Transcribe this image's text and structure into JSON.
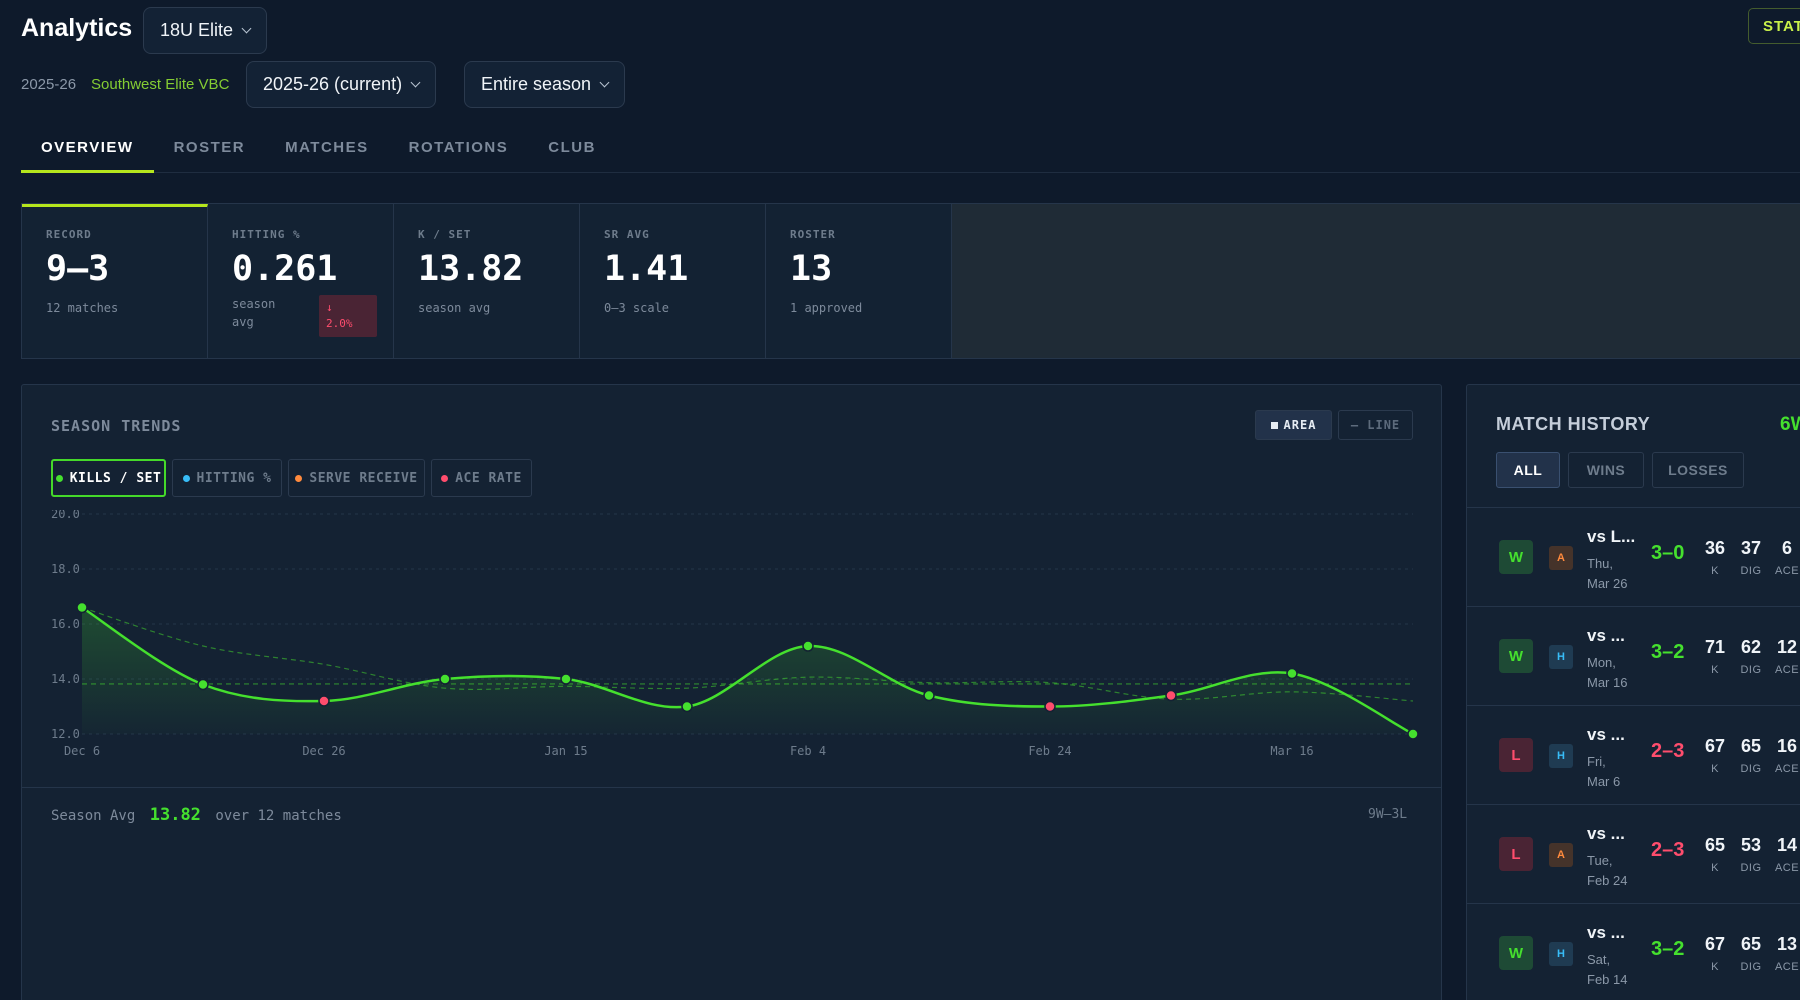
{
  "header": {
    "title": "Analytics",
    "team": "18U Elite",
    "season_label": "2025-26",
    "club_name": "Southwest Elite VBC",
    "season_select": "2025-26 (current)",
    "range_select": "Entire season",
    "stat_button": "STAT"
  },
  "tabs": [
    "OVERVIEW",
    "ROSTER",
    "MATCHES",
    "ROTATIONS",
    "CLUB"
  ],
  "kpis": {
    "record": {
      "label": "RECORD",
      "value": "9–3",
      "sub": "12 matches"
    },
    "hitting": {
      "label": "HITTING %",
      "value": "0.261",
      "sub": "season avg",
      "delta_arrow": "↓",
      "delta": "2.0%"
    },
    "kset": {
      "label": "K / SET",
      "value": "13.82",
      "sub": "season avg"
    },
    "sr": {
      "label": "SR AVG",
      "value": "1.41",
      "sub": "0–3 scale"
    },
    "roster": {
      "label": "ROSTER",
      "value": "13",
      "sub": "1 approved"
    }
  },
  "trends": {
    "title": "SEASON TRENDS",
    "view_area": "AREA",
    "view_line": "— LINE",
    "metrics": [
      {
        "label": "KILLS / SET",
        "color": "#45e02e"
      },
      {
        "label": "HITTING %",
        "color": "#38bdf8"
      },
      {
        "label": "SERVE RECEIVE",
        "color": "#ff8a3d"
      },
      {
        "label": "ACE RATE",
        "color": "#ff4d6d"
      }
    ],
    "footer_prefix": "Season Avg",
    "footer_value": "13.82",
    "footer_suffix": "over 12 matches",
    "record": "9W–3L"
  },
  "chart_data": {
    "type": "area",
    "ylim": [
      12,
      20
    ],
    "yticks": [
      "20.0",
      "18.0",
      "16.0",
      "14.0",
      "12.0"
    ],
    "xticks": [
      "Dec 6",
      "Dec 26",
      "Jan 15",
      "Feb 4",
      "Feb 24",
      "Mar 16"
    ],
    "series": [
      {
        "values": [
          16.6,
          13.8,
          13.2,
          14.0,
          14.0,
          13.0,
          15.2,
          13.4,
          13.0,
          13.4,
          14.2,
          12.0
        ],
        "results": [
          "W",
          "W",
          "L",
          "W",
          "W",
          "W",
          "W",
          "W",
          "L",
          "L",
          "W",
          "W"
        ]
      }
    ],
    "average": 13.82,
    "colors": {
      "line": "#45e02e",
      "win": "#45e02e",
      "loss": "#ff4d6d"
    }
  },
  "history": {
    "title": "MATCH HISTORY",
    "count": "6W",
    "filters": [
      "ALL",
      "WINS",
      "LOSSES"
    ],
    "matches": [
      {
        "result": "W",
        "loc": "A",
        "opp": "vs L...",
        "day": "Thu,",
        "date": "Mar 26",
        "score": "3–0",
        "k": "36",
        "dig": "37",
        "ace": "6"
      },
      {
        "result": "W",
        "loc": "H",
        "opp": "vs ...",
        "day": "Mon,",
        "date": "Mar 16",
        "score": "3–2",
        "k": "71",
        "dig": "62",
        "ace": "12"
      },
      {
        "result": "L",
        "loc": "H",
        "opp": "vs ...",
        "day": "Fri,",
        "date": "Mar 6",
        "score": "2–3",
        "k": "67",
        "dig": "65",
        "ace": "16"
      },
      {
        "result": "L",
        "loc": "A",
        "opp": "vs ...",
        "day": "Tue,",
        "date": "Feb 24",
        "score": "2–3",
        "k": "65",
        "dig": "53",
        "ace": "14"
      },
      {
        "result": "W",
        "loc": "H",
        "opp": "vs ...",
        "day": "Sat,",
        "date": "Feb 14",
        "score": "3–2",
        "k": "67",
        "dig": "65",
        "ace": "13"
      }
    ],
    "stat_labels": {
      "k": "K",
      "dig": "DIG",
      "ace": "ACE"
    }
  }
}
